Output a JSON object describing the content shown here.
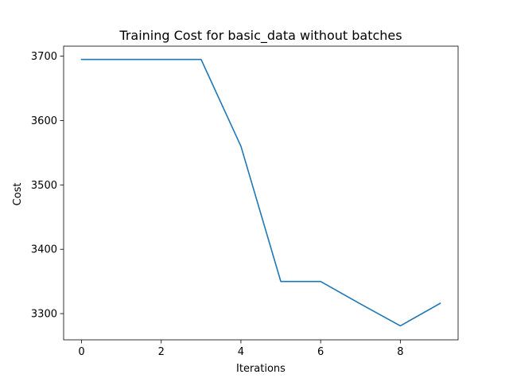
{
  "chart_data": {
    "type": "line",
    "title": "Training Cost for basic_data without batches",
    "xlabel": "Iterations",
    "ylabel": "Cost",
    "x": [
      0,
      1,
      2,
      3,
      4,
      5,
      6,
      7,
      8,
      9
    ],
    "series": [
      {
        "values": [
          3695,
          3695,
          3695,
          3695,
          3560,
          3350,
          3350,
          3315,
          3281,
          3316
        ],
        "color": "#1f77b4"
      }
    ],
    "xlim": [
      -0.45,
      9.45
    ],
    "ylim": [
      3259.3,
      3715.6
    ],
    "xticks": [
      0,
      2,
      4,
      6,
      8
    ],
    "xtick_labels": [
      "0",
      "2",
      "4",
      "6",
      "8"
    ],
    "yticks": [
      3300,
      3400,
      3500,
      3600,
      3700
    ],
    "ytick_labels": [
      "3300",
      "3400",
      "3500",
      "3600",
      "3700"
    ],
    "grid": false,
    "legend": false
  }
}
